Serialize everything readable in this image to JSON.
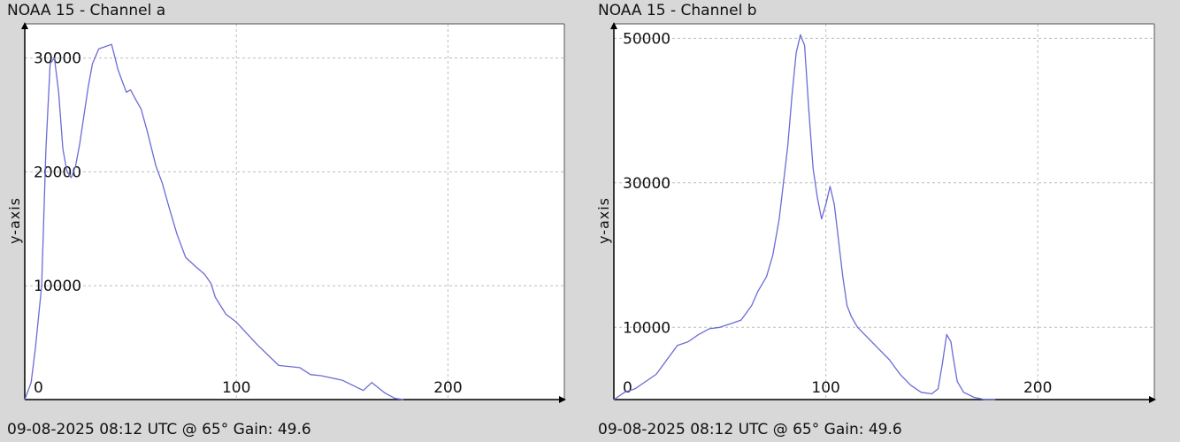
{
  "charts": {
    "a": {
      "title": "NOAA 15 - Channel a",
      "footer": "09-08-2025 08:12 UTC @ 65° Gain: 49.6"
    },
    "b": {
      "title": "NOAA 15 - Channel b",
      "footer": "09-08-2025 08:12 UTC @ 65° Gain: 49.6"
    }
  },
  "chart_data": [
    {
      "type": "line",
      "title": "NOAA 15 - Channel a",
      "xlabel": "",
      "ylabel": "y-axis",
      "xlim": [
        0,
        255
      ],
      "ylim": [
        0,
        33000
      ],
      "xticks": [
        0,
        100,
        200
      ],
      "yticks": [
        10000,
        20000,
        30000
      ],
      "grid": true,
      "line_color": "#6b6bd6",
      "series": [
        {
          "x": [
            0,
            3,
            5,
            8,
            10,
            12,
            14,
            16,
            18,
            20,
            22,
            24,
            26,
            28,
            30,
            32,
            35,
            38,
            41,
            42,
            44,
            46,
            48,
            50,
            52,
            55,
            58,
            60,
            62,
            65,
            68,
            72,
            76,
            80,
            85,
            88,
            90,
            95,
            100,
            110,
            120,
            130,
            135,
            140,
            150,
            160,
            164,
            170,
            175,
            179
          ],
          "y": [
            0,
            1500,
            4500,
            10000,
            22000,
            29500,
            30000,
            27000,
            22000,
            20000,
            19500,
            20500,
            22500,
            25000,
            27500,
            29500,
            30800,
            31000,
            31200,
            30500,
            29000,
            28000,
            27000,
            27200,
            26500,
            25500,
            23500,
            22000,
            20500,
            19000,
            17000,
            14500,
            12500,
            11800,
            11000,
            10200,
            9000,
            7500,
            6800,
            4800,
            3000,
            2800,
            2200,
            2100,
            1700,
            800,
            1500,
            600,
            100,
            0
          ]
        }
      ]
    },
    {
      "type": "line",
      "title": "NOAA 15 - Channel b",
      "xlabel": "",
      "ylabel": "y-axis",
      "xlim": [
        0,
        255
      ],
      "ylim": [
        0,
        52000
      ],
      "xticks": [
        0,
        100,
        200
      ],
      "yticks": [
        10000,
        30000,
        50000
      ],
      "grid": true,
      "line_color": "#6b6bd6",
      "series": [
        {
          "x": [
            0,
            5,
            10,
            15,
            20,
            25,
            30,
            35,
            40,
            45,
            50,
            55,
            60,
            65,
            68,
            72,
            75,
            78,
            80,
            82,
            84,
            86,
            88,
            90,
            92,
            94,
            96,
            98,
            100,
            102,
            104,
            106,
            108,
            110,
            112,
            115,
            120,
            125,
            130,
            135,
            140,
            145,
            150,
            153,
            155,
            157,
            159,
            160,
            162,
            165,
            170,
            175,
            180
          ],
          "y": [
            0,
            1000,
            1500,
            2500,
            3500,
            5500,
            7500,
            8000,
            9000,
            9800,
            10000,
            10500,
            11000,
            13000,
            15000,
            17000,
            20000,
            25000,
            30000,
            35000,
            42000,
            48000,
            50500,
            49000,
            40000,
            32000,
            28000,
            25000,
            27000,
            29500,
            27000,
            22000,
            17000,
            13000,
            11500,
            10000,
            8500,
            7000,
            5500,
            3500,
            2000,
            1000,
            800,
            1500,
            5000,
            9000,
            8000,
            6000,
            2500,
            1000,
            300,
            0,
            0
          ]
        }
      ]
    }
  ]
}
